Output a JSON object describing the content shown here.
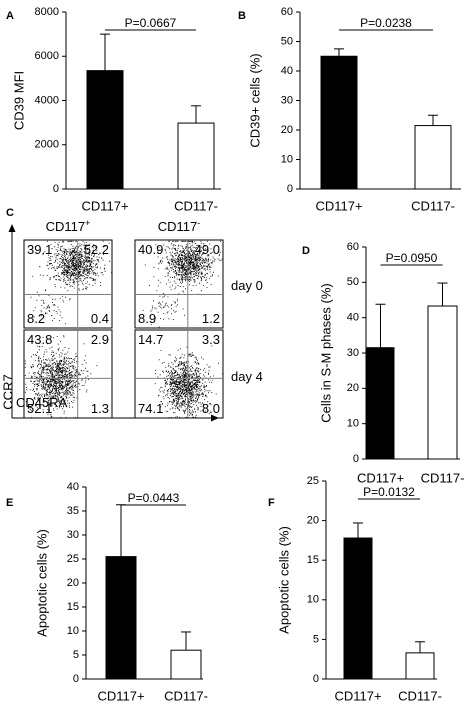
{
  "chart_data": [
    {
      "panel": "A",
      "type": "bar",
      "categories": [
        "CD117+",
        "CD117-"
      ],
      "values": [
        5350,
        2980
      ],
      "errors": [
        1650,
        780
      ],
      "fills": [
        "#000000",
        "#ffffff"
      ],
      "ylabel": "CD39 MFI",
      "ylim": [
        0,
        8000
      ],
      "yticks": [
        0,
        2000,
        4000,
        6000,
        8000
      ],
      "ytick_labels": [
        "0",
        "2000",
        "4000",
        "6000",
        "8000"
      ],
      "pvalue": "P=0.0667"
    },
    {
      "panel": "B",
      "type": "bar",
      "categories": [
        "CD117+",
        "CD117-"
      ],
      "values": [
        45,
        21.5
      ],
      "errors": [
        2.5,
        3.5
      ],
      "fills": [
        "#000000",
        "#ffffff"
      ],
      "ylabel": "CD39+ cells (%)",
      "ylim": [
        0,
        60
      ],
      "yticks": [
        0,
        10,
        20,
        30,
        40,
        50,
        60
      ],
      "ytick_labels": [
        "0",
        "10",
        "20",
        "30",
        "40",
        "50",
        "60"
      ],
      "pvalue": "P=0.0238"
    },
    {
      "panel": "C",
      "type": "scatter",
      "columns": [
        {
          "label": "CD117",
          "sup": "+"
        },
        {
          "label": "CD117",
          "sup": "-"
        }
      ],
      "rows": [
        {
          "label": "day 0",
          "quadrants": [
            [
              "39.1",
              "52.2",
              "8.2",
              "0.4"
            ],
            [
              "40.9",
              "49.0",
              "8.9",
              "1.2"
            ]
          ]
        },
        {
          "label": "day 4",
          "quadrants": [
            [
              "43.8",
              "2.9",
              "52.1",
              "1.3"
            ],
            [
              "14.7",
              "3.3",
              "74.1",
              "8.0"
            ]
          ]
        }
      ],
      "ylabel": "CCR7",
      "xlabel": "CD45RA"
    },
    {
      "panel": "D",
      "type": "bar",
      "categories": [
        "CD117+",
        "CD117-"
      ],
      "values": [
        31.5,
        43.3
      ],
      "errors": [
        12.3,
        6.5
      ],
      "fills": [
        "#000000",
        "#ffffff"
      ],
      "ylabel": "Cells in S-M phases (%)",
      "ylim": [
        0,
        60
      ],
      "yticks": [
        0,
        10,
        20,
        30,
        40,
        50,
        60
      ],
      "ytick_labels": [
        "0",
        "10",
        "20",
        "30",
        "40",
        "50",
        "60"
      ],
      "pvalue": "P=0.0950"
    },
    {
      "panel": "E",
      "type": "bar",
      "categories": [
        "CD117+",
        "CD117-"
      ],
      "values": [
        25.5,
        6
      ],
      "errors": [
        10.8,
        3.8
      ],
      "fills": [
        "#000000",
        "#ffffff"
      ],
      "ylabel": "Apoptotic cells (%)",
      "ylim": [
        0,
        40
      ],
      "yticks": [
        0,
        5,
        10,
        15,
        20,
        25,
        30,
        35,
        40
      ],
      "ytick_labels": [
        "0",
        "5",
        "10",
        "15",
        "20",
        "25",
        "30",
        "35",
        "40"
      ],
      "pvalue": "P=0.0443"
    },
    {
      "panel": "F",
      "type": "bar",
      "categories": [
        "CD117+",
        "CD117-"
      ],
      "values": [
        17.8,
        3.3
      ],
      "errors": [
        1.9,
        1.4
      ],
      "fills": [
        "#000000",
        "#ffffff"
      ],
      "ylabel": "Apoptotic cells (%)",
      "ylim": [
        0,
        25
      ],
      "yticks": [
        0,
        5,
        10,
        15,
        20,
        25
      ],
      "ytick_labels": [
        "0",
        "5",
        "10",
        "15",
        "20",
        "25"
      ],
      "pvalue": "P=0.0132"
    }
  ]
}
